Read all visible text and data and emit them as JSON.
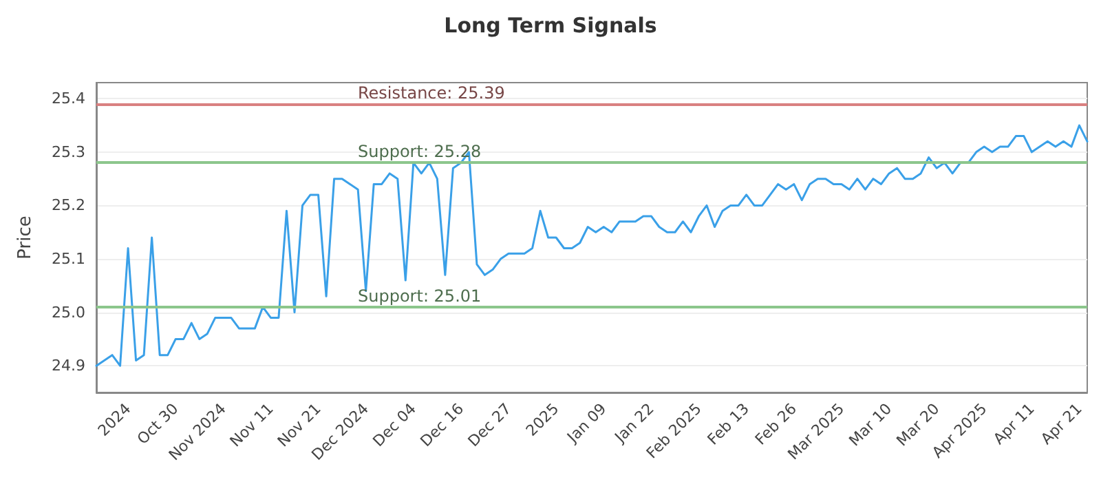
{
  "chart_data": {
    "type": "line",
    "title": "Long Term Signals",
    "ylabel": "Price",
    "categories": [
      null,
      null,
      null,
      null,
      "2024",
      null,
      null,
      null,
      null,
      null,
      "Oct 30",
      null,
      null,
      null,
      null,
      null,
      "Nov 2024",
      null,
      null,
      null,
      null,
      null,
      "Nov 11",
      null,
      null,
      null,
      null,
      null,
      "Nov 21",
      null,
      null,
      null,
      null,
      null,
      "Dec 2024",
      null,
      null,
      null,
      null,
      null,
      "Dec 04",
      null,
      null,
      null,
      null,
      null,
      "Dec 16",
      null,
      null,
      null,
      null,
      null,
      "Dec 27",
      null,
      null,
      null,
      null,
      null,
      "2025",
      null,
      null,
      null,
      null,
      null,
      "Jan 09",
      null,
      null,
      null,
      null,
      null,
      "Jan 22",
      null,
      null,
      null,
      null,
      null,
      "Feb 2025",
      null,
      null,
      null,
      null,
      null,
      "Feb 13",
      null,
      null,
      null,
      null,
      null,
      "Feb 26",
      null,
      null,
      null,
      null,
      null,
      "Mar 2025",
      null,
      null,
      null,
      null,
      null,
      "Mar 10",
      null,
      null,
      null,
      null,
      null,
      "Mar 20",
      null,
      null,
      null,
      null,
      null,
      "Apr 2025",
      null,
      null,
      null,
      null,
      null,
      "Apr 11",
      null,
      null,
      null,
      null,
      null,
      "Apr 21",
      null
    ],
    "series": [
      {
        "color": "#3aa0e8",
        "values": [
          24.9,
          24.91,
          24.92,
          24.9,
          25.12,
          24.91,
          24.92,
          25.14,
          24.92,
          24.92,
          24.95,
          24.95,
          24.98,
          24.95,
          24.96,
          24.99,
          24.99,
          24.99,
          24.97,
          24.97,
          24.97,
          25.01,
          24.99,
          24.99,
          25.19,
          25.0,
          25.2,
          25.22,
          25.22,
          25.03,
          25.25,
          25.25,
          25.24,
          25.23,
          25.04,
          25.24,
          25.24,
          25.26,
          25.25,
          25.06,
          25.28,
          25.26,
          25.28,
          25.25,
          25.07,
          25.27,
          25.28,
          25.3,
          25.09,
          25.07,
          25.08,
          25.1,
          25.11,
          25.11,
          25.11,
          25.12,
          25.19,
          25.14,
          25.14,
          25.12,
          25.12,
          25.13,
          25.16,
          25.15,
          25.16,
          25.15,
          25.17,
          25.17,
          25.17,
          25.18,
          25.18,
          25.16,
          25.15,
          25.15,
          25.17,
          25.15,
          25.18,
          25.2,
          25.16,
          25.19,
          25.2,
          25.2,
          25.22,
          25.2,
          25.2,
          25.22,
          25.24,
          25.23,
          25.24,
          25.21,
          25.24,
          25.25,
          25.25,
          25.24,
          25.24,
          25.23,
          25.25,
          25.23,
          25.25,
          25.24,
          25.26,
          25.27,
          25.25,
          25.25,
          25.26,
          25.29,
          25.27,
          25.28,
          25.26,
          25.28,
          25.28,
          25.3,
          25.31,
          25.3,
          25.31,
          25.31,
          25.33,
          25.33,
          25.3,
          25.31,
          25.32,
          25.31,
          25.32,
          25.31,
          25.35,
          25.32
        ]
      }
    ],
    "ylim": [
      24.85,
      25.43
    ],
    "yticks": [
      24.9,
      {
        "value": 25.0,
        "label": "25.0"
      },
      25.1,
      25.2,
      25.3,
      25.4
    ],
    "ref_lines": [
      {
        "axis": "y",
        "value": 25.39,
        "label": "Resistance: 25.39",
        "color": "#d98080"
      },
      {
        "axis": "y",
        "value": 25.28,
        "label": "Support: 25.28",
        "color": "#8cc68c"
      },
      {
        "axis": "y",
        "value": 25.01,
        "label": "Support: 25.01",
        "color": "#8cc68c"
      }
    ],
    "grid": "y",
    "marker": "none",
    "line_style": "solid"
  }
}
